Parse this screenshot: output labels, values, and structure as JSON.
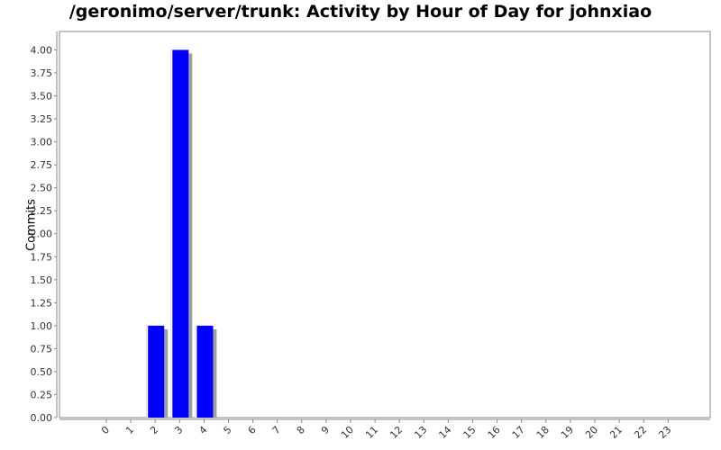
{
  "chart_data": {
    "type": "bar",
    "title": "/geronimo/server/trunk: Activity by Hour of Day for johnxiao",
    "xlabel": "",
    "ylabel": "Commits",
    "categories": [
      "0",
      "1",
      "2",
      "3",
      "4",
      "5",
      "6",
      "7",
      "8",
      "9",
      "10",
      "11",
      "12",
      "13",
      "14",
      "15",
      "16",
      "17",
      "18",
      "19",
      "20",
      "21",
      "22",
      "23"
    ],
    "values": [
      0,
      0,
      1,
      4,
      1,
      0,
      0,
      0,
      0,
      0,
      0,
      0,
      0,
      0,
      0,
      0,
      0,
      0,
      0,
      0,
      0,
      0,
      0,
      0
    ],
    "ylim": [
      0,
      4.2
    ],
    "yticks": [
      "0.00",
      "0.25",
      "0.50",
      "0.75",
      "1.00",
      "1.25",
      "1.50",
      "1.75",
      "2.00",
      "2.25",
      "2.50",
      "2.75",
      "3.00",
      "3.25",
      "3.50",
      "3.75",
      "4.00"
    ],
    "grid": false,
    "legend": "none",
    "colors": {
      "bar": "#0000ff",
      "shadow": "#a0a0a0",
      "highlight": "#ffffff"
    }
  }
}
